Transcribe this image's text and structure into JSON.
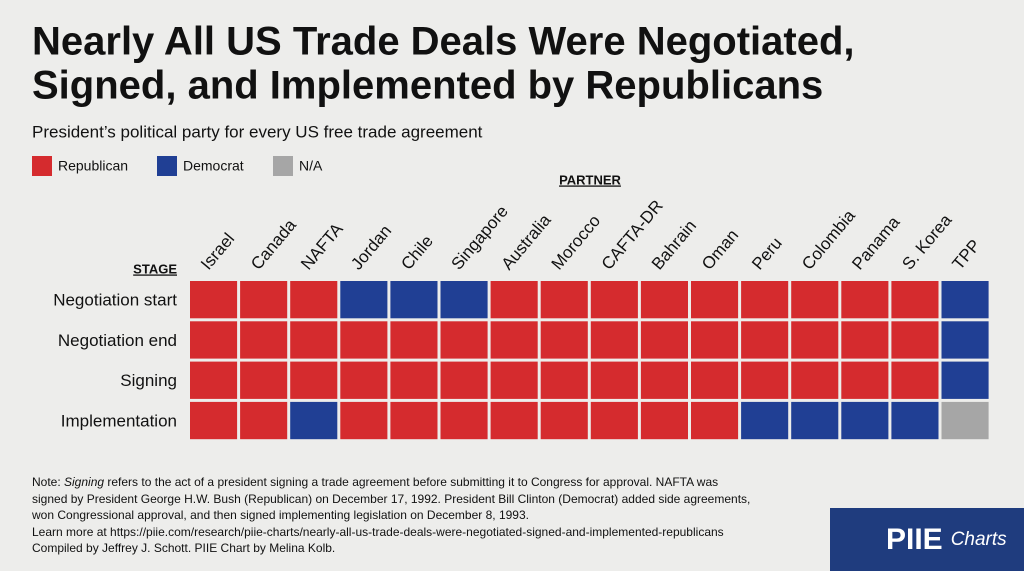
{
  "chart_data": {
    "type": "heatmap",
    "title": [
      "Nearly All US Trade Deals Were Negotiated,",
      "Signed, and Implemented by Republicans"
    ],
    "subtitle": "President’s political party for every US free trade agreement",
    "legend": [
      {
        "name": "Republican",
        "color": "#d52b2e"
      },
      {
        "name": "Democrat",
        "color": "#203f94"
      },
      {
        "name": "N/A",
        "color": "#a6a6a6"
      }
    ],
    "x_label": "PARTNER",
    "y_label": "STAGE",
    "categories": [
      "Israel",
      "Canada",
      "NAFTA",
      "Jordan",
      "Chile",
      "Singapore",
      "Australia",
      "Morocco",
      "CAFTA-DR",
      "Bahrain",
      "Oman",
      "Peru",
      "Colombia",
      "Panama",
      "S. Korea",
      "TPP"
    ],
    "rows": [
      "Negotiation start",
      "Negotiation end",
      "Signing",
      "Implementation"
    ],
    "cells": [
      [
        "Republican",
        "Republican",
        "Republican",
        "Democrat",
        "Democrat",
        "Democrat",
        "Republican",
        "Republican",
        "Republican",
        "Republican",
        "Republican",
        "Republican",
        "Republican",
        "Republican",
        "Republican",
        "Democrat"
      ],
      [
        "Republican",
        "Republican",
        "Republican",
        "Republican",
        "Republican",
        "Republican",
        "Republican",
        "Republican",
        "Republican",
        "Republican",
        "Republican",
        "Republican",
        "Republican",
        "Republican",
        "Republican",
        "Democrat"
      ],
      [
        "Republican",
        "Republican",
        "Republican",
        "Republican",
        "Republican",
        "Republican",
        "Republican",
        "Republican",
        "Republican",
        "Republican",
        "Republican",
        "Republican",
        "Republican",
        "Republican",
        "Republican",
        "Democrat"
      ],
      [
        "Republican",
        "Republican",
        "Democrat",
        "Republican",
        "Republican",
        "Republican",
        "Republican",
        "Republican",
        "Republican",
        "Republican",
        "Republican",
        "Democrat",
        "Democrat",
        "Democrat",
        "Democrat",
        "N/A"
      ]
    ],
    "note": [
      [
        "Note: ",
        "Signing",
        " refers to the act of a president signing a trade agreement before submitting it to Congress for approval. NAFTA was"
      ],
      [
        "signed by President George H.W. Bush (Republican) on December 17, 1992. President Bill Clinton (Democrat) added side agreements,"
      ],
      [
        "won Congressional approval, and then signed implementing legislation on December 8, 1993."
      ],
      [
        "Learn more at https://piie.com/research/piie-charts/nearly-all-us-trade-deals-were-negotiated-signed-and-implemented-republicans"
      ],
      [
        "Compiled by Jeffrey J. Schott. PIIE Chart by Melina Kolb."
      ]
    ],
    "logo": {
      "brand": "PIIE",
      "product": "Charts"
    }
  }
}
